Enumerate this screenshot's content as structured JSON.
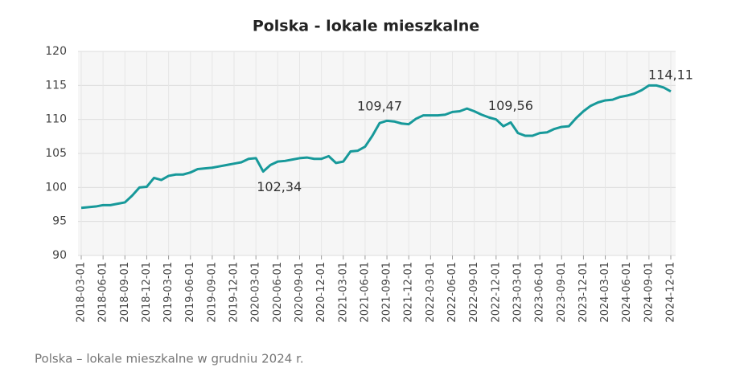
{
  "chart_data": {
    "type": "line",
    "title": "Polska - lokale mieszkalne",
    "caption": "Polska – lokale mieszkalne w grudniu 2024 r.",
    "x": [
      "2018-03-01",
      "2018-04-01",
      "2018-05-01",
      "2018-06-01",
      "2018-07-01",
      "2018-08-01",
      "2018-09-01",
      "2018-10-01",
      "2018-11-01",
      "2018-12-01",
      "2019-01-01",
      "2019-02-01",
      "2019-03-01",
      "2019-04-01",
      "2019-05-01",
      "2019-06-01",
      "2019-07-01",
      "2019-08-01",
      "2019-09-01",
      "2019-10-01",
      "2019-11-01",
      "2019-12-01",
      "2020-01-01",
      "2020-02-01",
      "2020-03-01",
      "2020-04-01",
      "2020-05-01",
      "2020-06-01",
      "2020-07-01",
      "2020-08-01",
      "2020-09-01",
      "2020-10-01",
      "2020-11-01",
      "2020-12-01",
      "2021-01-01",
      "2021-02-01",
      "2021-03-01",
      "2021-04-01",
      "2021-05-01",
      "2021-06-01",
      "2021-07-01",
      "2021-08-01",
      "2021-09-01",
      "2021-10-01",
      "2021-11-01",
      "2021-12-01",
      "2022-01-01",
      "2022-02-01",
      "2022-03-01",
      "2022-04-01",
      "2022-05-01",
      "2022-06-01",
      "2022-07-01",
      "2022-08-01",
      "2022-09-01",
      "2022-10-01",
      "2022-11-01",
      "2022-12-01",
      "2023-01-01",
      "2023-02-01",
      "2023-03-01",
      "2023-04-01",
      "2023-05-01",
      "2023-06-01",
      "2023-07-01",
      "2023-08-01",
      "2023-09-01",
      "2023-10-01",
      "2023-11-01",
      "2023-12-01",
      "2024-01-01",
      "2024-02-01",
      "2024-03-01",
      "2024-04-01",
      "2024-05-01",
      "2024-06-01",
      "2024-07-01",
      "2024-08-01",
      "2024-09-01",
      "2024-10-01",
      "2024-11-01",
      "2024-12-01"
    ],
    "series": [
      {
        "name": "Polska - lokale mieszkalne",
        "color": "#17999a",
        "values": [
          97.0,
          97.1,
          97.2,
          97.4,
          97.4,
          97.6,
          97.8,
          98.8,
          100.0,
          100.1,
          101.4,
          101.1,
          101.7,
          101.9,
          101.9,
          102.2,
          102.7,
          102.8,
          102.9,
          103.1,
          103.3,
          103.5,
          103.7,
          104.2,
          104.3,
          102.34,
          103.3,
          103.8,
          103.9,
          104.1,
          104.3,
          104.4,
          104.2,
          104.2,
          104.6,
          103.6,
          103.8,
          105.3,
          105.4,
          106.0,
          107.6,
          109.47,
          109.8,
          109.7,
          109.4,
          109.3,
          110.1,
          110.6,
          110.6,
          110.6,
          110.7,
          111.1,
          111.2,
          111.6,
          111.2,
          110.7,
          110.3,
          110.0,
          109.0,
          109.56,
          108.0,
          107.6,
          107.6,
          108.0,
          108.1,
          108.6,
          108.9,
          109.0,
          110.2,
          111.2,
          112.0,
          112.5,
          112.8,
          112.9,
          113.3,
          113.5,
          113.8,
          114.3,
          115.0,
          115.0,
          114.7,
          114.11
        ],
        "value_labels": [
          null,
          null,
          null,
          null,
          null,
          null,
          null,
          null,
          null,
          null,
          null,
          null,
          null,
          null,
          null,
          null,
          null,
          null,
          null,
          null,
          null,
          null,
          null,
          null,
          null,
          "102,34",
          null,
          null,
          null,
          null,
          null,
          null,
          null,
          null,
          null,
          null,
          null,
          null,
          null,
          null,
          null,
          "109,47",
          null,
          null,
          null,
          null,
          null,
          null,
          null,
          null,
          null,
          null,
          null,
          null,
          null,
          null,
          null,
          null,
          null,
          "109,56",
          null,
          null,
          null,
          null,
          null,
          null,
          null,
          null,
          null,
          null,
          null,
          null,
          null,
          null,
          null,
          null,
          null,
          null,
          null,
          null,
          null,
          "114,11"
        ]
      }
    ],
    "xlim": [
      "2018-03-01",
      "2024-12-01"
    ],
    "xticks": [
      "2018-03-01",
      "2018-06-01",
      "2018-09-01",
      "2018-12-01",
      "2019-03-01",
      "2019-06-01",
      "2019-09-01",
      "2019-12-01",
      "2020-03-01",
      "2020-06-01",
      "2020-09-01",
      "2020-12-01",
      "2021-03-01",
      "2021-06-01",
      "2021-09-01",
      "2021-12-01",
      "2022-03-01",
      "2022-06-01",
      "2022-09-01",
      "2022-12-01",
      "2023-03-01",
      "2023-06-01",
      "2023-09-01",
      "2023-12-01",
      "2024-03-01",
      "2024-06-01",
      "2024-09-01",
      "2024-12-01"
    ],
    "ylim": [
      90,
      120
    ],
    "yticks": [
      90,
      95,
      100,
      105,
      110,
      115,
      120
    ],
    "grid": true
  }
}
